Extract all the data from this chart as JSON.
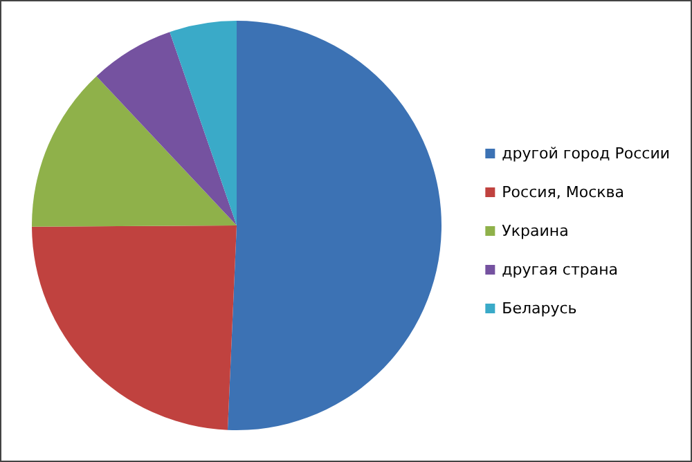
{
  "chart_data": {
    "type": "pie",
    "categories": [
      "другой город России",
      "Россия, Москва",
      "Украина",
      "другая страна",
      "Беларусь"
    ],
    "values": [
      50.7,
      24.2,
      13.1,
      6.7,
      5.3
    ],
    "colors": [
      "#3c72b4",
      "#c0423f",
      "#8fb14a",
      "#7552a0",
      "#3aaac8"
    ],
    "legend": "right"
  }
}
